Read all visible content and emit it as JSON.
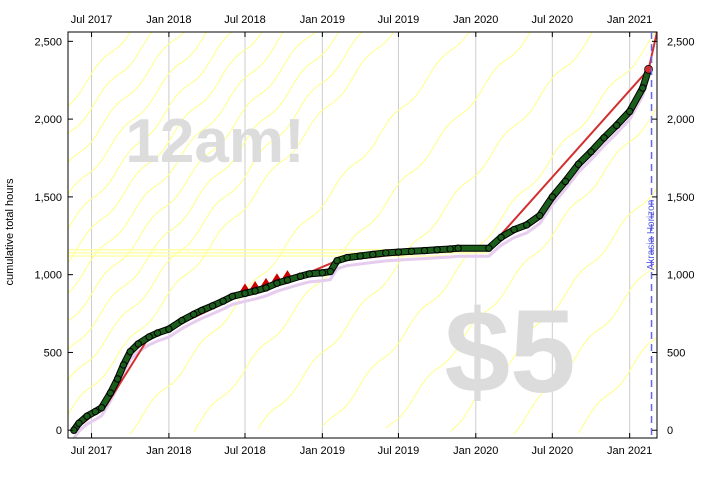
{
  "colors": {
    "data_points": "#1b5e1b",
    "data_outline": "#000000",
    "road_line": "#d32f2f",
    "road_dots": "#e0e0ff",
    "guide_lines": "#ffff99",
    "lane_faint": "#e6ccee",
    "horizon": "#6666ee",
    "grid": "#cccccc",
    "watermark": "#dcdcdc",
    "end_marker": "#d32f2f",
    "small_red_tris": "#cc0000"
  },
  "watermarks": {
    "deadline": "12am!",
    "pledge": "$5"
  },
  "chart_data": {
    "type": "line",
    "title": "",
    "xlabel": "",
    "ylabel": "cumulative total hours",
    "x_ticks": [
      "Jul 2017",
      "Jan 2018",
      "Jul 2018",
      "Jan 2019",
      "Jul 2019",
      "Jan 2020",
      "Jul 2020",
      "Jan 2021"
    ],
    "x_tick_dates": [
      "2017-07-01",
      "2018-01-01",
      "2018-07-01",
      "2019-01-01",
      "2019-07-01",
      "2020-01-01",
      "2020-07-01",
      "2021-01-01"
    ],
    "x_range": [
      "2017-05-06",
      "2021-03-07"
    ],
    "y_ticks": [
      0,
      500,
      1000,
      1500,
      2000,
      2500
    ],
    "y_tick_labels": [
      "0",
      "500",
      "1,000",
      "1,500",
      "2,000",
      "2,500"
    ],
    "ylim": [
      -50,
      2560
    ],
    "grid": "vertical",
    "horizon_label": "Akrasia Horizon",
    "horizon_date": "2021-02-22",
    "series": [
      {
        "role": "datapoints",
        "dates": [
          "2017-05-20",
          "2017-06-01",
          "2017-06-20",
          "2017-07-10",
          "2017-07-25",
          "2017-08-15",
          "2017-09-01",
          "2017-09-15",
          "2017-10-01",
          "2017-10-20",
          "2017-11-15",
          "2017-12-05",
          "2018-01-01",
          "2018-02-01",
          "2018-03-01",
          "2018-03-20",
          "2018-04-15",
          "2018-05-10",
          "2018-06-01",
          "2018-07-01",
          "2018-07-25",
          "2018-08-20",
          "2018-09-15",
          "2018-10-10",
          "2018-11-10",
          "2018-12-01",
          "2019-01-01",
          "2019-01-20",
          "2019-02-05",
          "2019-03-01",
          "2019-04-01",
          "2019-05-01",
          "2019-06-01",
          "2019-07-01",
          "2019-08-01",
          "2019-09-01",
          "2019-10-01",
          "2019-11-01",
          "2019-11-20",
          "2020-02-01",
          "2020-03-01",
          "2020-04-01",
          "2020-05-01",
          "2020-06-01",
          "2020-07-01",
          "2020-08-01",
          "2020-09-01",
          "2020-10-01",
          "2020-11-01",
          "2020-12-01",
          "2021-01-01",
          "2021-02-01",
          "2021-02-15"
        ],
        "values": [
          0,
          45,
          90,
          120,
          145,
          240,
          330,
          420,
          505,
          555,
          600,
          625,
          650,
          705,
          745,
          770,
          800,
          830,
          860,
          880,
          895,
          915,
          945,
          965,
          990,
          1005,
          1012,
          1020,
          1090,
          1110,
          1120,
          1130,
          1140,
          1145,
          1150,
          1155,
          1160,
          1165,
          1170,
          1170,
          1240,
          1290,
          1320,
          1380,
          1500,
          1600,
          1710,
          1790,
          1880,
          1960,
          2050,
          2200,
          2320
        ]
      },
      {
        "role": "bright-red-line",
        "dates": [
          "2017-05-20",
          "2017-07-25",
          "2017-08-05",
          "2017-11-15",
          "2018-01-01",
          "2018-07-01",
          "2018-11-10",
          "2019-02-05",
          "2019-11-20",
          "2020-02-01",
          "2021-02-15",
          "2021-03-07"
        ],
        "values": [
          0,
          140,
          160,
          600,
          650,
          880,
          990,
          1090,
          1170,
          1170,
          2320,
          2560
        ]
      }
    ],
    "end_point": {
      "date": "2021-02-15",
      "value": 2320
    },
    "guide_lines": [
      {
        "start_date": "2017-05-06",
        "start_value": 100,
        "slope_per_day": 3.2
      },
      {
        "start_date": "2017-05-06",
        "start_value": 300,
        "slope_per_day": 3.2
      },
      {
        "start_date": "2017-05-06",
        "start_value": 500,
        "slope_per_day": 3.2
      },
      {
        "start_date": "2017-05-06",
        "start_value": 700,
        "slope_per_day": 3.2
      },
      {
        "start_date": "2017-05-06",
        "start_value": 900,
        "slope_per_day": 3.2
      },
      {
        "start_date": "2017-05-06",
        "start_value": 1100,
        "slope_per_day": 3.2
      },
      {
        "start_date": "2017-05-06",
        "start_value": 1300,
        "slope_per_day": 3.2
      },
      {
        "start_date": "2017-05-06",
        "start_value": 1500,
        "slope_per_day": 3.2
      },
      {
        "start_date": "2017-05-06",
        "start_value": 1700,
        "slope_per_day": 3.2
      },
      {
        "start_date": "2017-05-06",
        "start_value": 1900,
        "slope_per_day": 3.2
      },
      {
        "start_date": "2017-05-06",
        "start_value": 2100,
        "slope_per_day": 3.2
      },
      {
        "start_date": "2017-10-01",
        "start_value": 0,
        "slope_per_day": 3.2
      },
      {
        "start_date": "2018-03-01",
        "start_value": 0,
        "slope_per_day": 3.2
      },
      {
        "start_date": "2018-08-01",
        "start_value": 0,
        "slope_per_day": 3.2
      },
      {
        "start_date": "2019-01-01",
        "start_value": 0,
        "slope_per_day": 3.2
      },
      {
        "start_date": "2019-06-01",
        "start_value": 0,
        "slope_per_day": 3.2
      },
      {
        "start_date": "2019-11-01",
        "start_value": 0,
        "slope_per_day": 3.2
      },
      {
        "start_date": "2020-04-01",
        "start_value": 0,
        "slope_per_day": 3.2
      },
      {
        "start_date": "2020-09-01",
        "start_value": 0,
        "slope_per_day": 3.2
      }
    ]
  }
}
